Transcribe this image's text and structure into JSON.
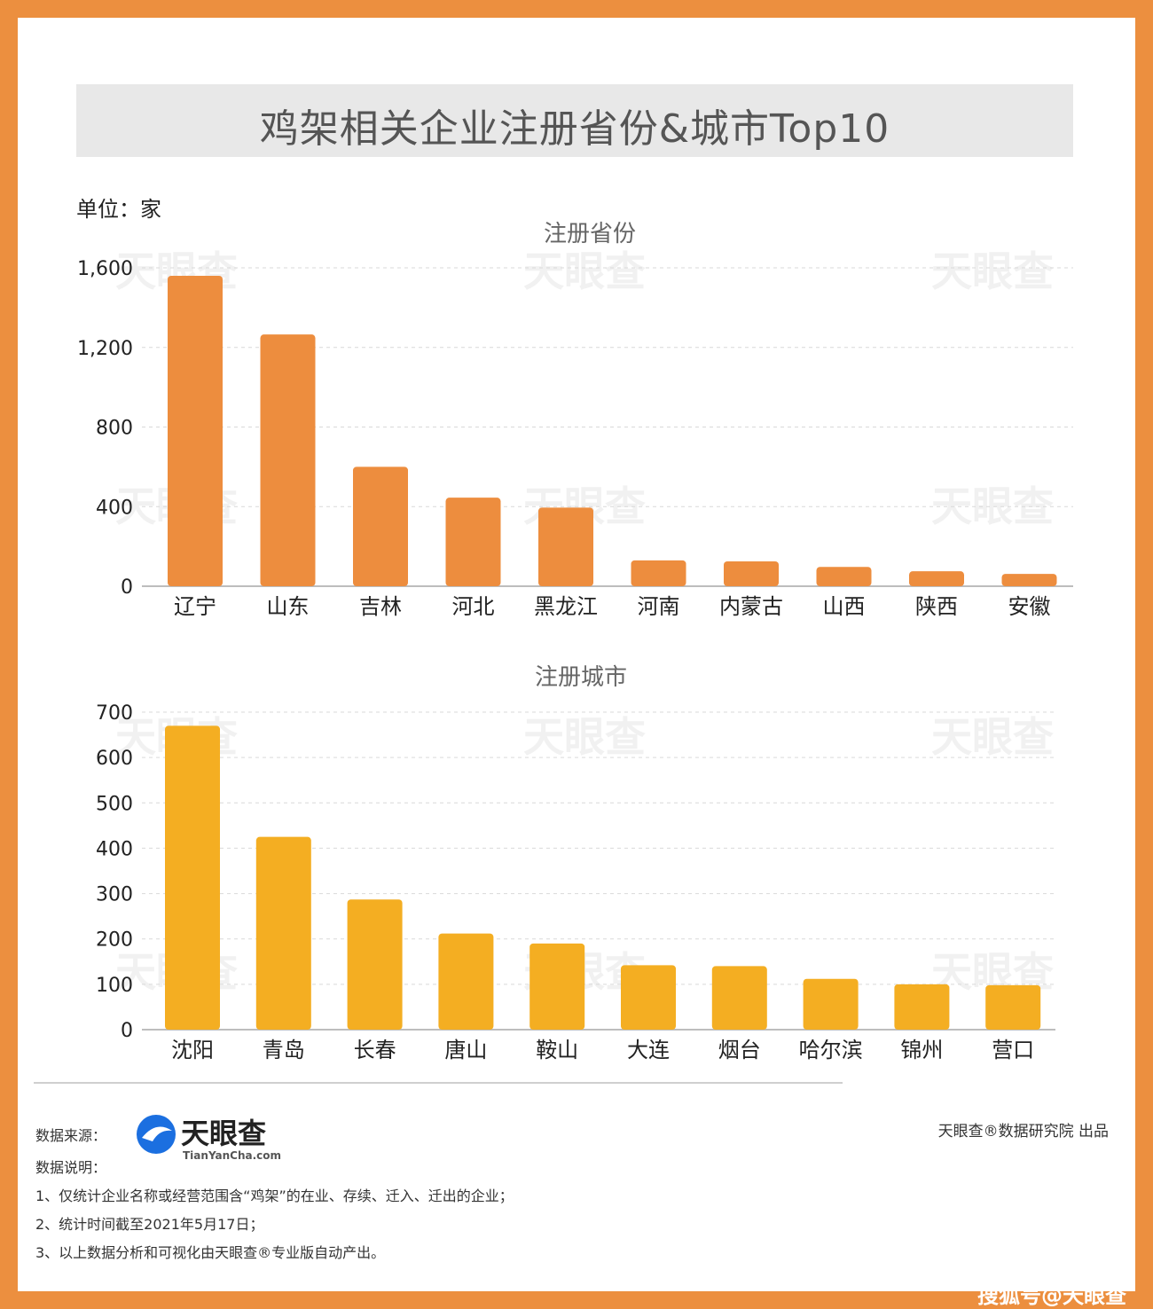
{
  "header": {
    "title": "鸡架相关企业注册省份&城市Top10",
    "unit": "单位：家"
  },
  "colors": {
    "frame": "#ec8f3f",
    "province_bar": "#ed8d3e",
    "city_bar": "#f4ae22"
  },
  "chart_data": [
    {
      "type": "bar",
      "title": "注册省份",
      "categories": [
        "辽宁",
        "山东",
        "吉林",
        "河北",
        "黑龙江",
        "河南",
        "内蒙古",
        "山西",
        "陕西",
        "安徽"
      ],
      "values": [
        1560,
        1265,
        600,
        445,
        395,
        130,
        125,
        97,
        75,
        62
      ],
      "ylim": [
        0,
        1600
      ],
      "yticks": [
        0,
        400,
        800,
        1200,
        1600
      ],
      "ytick_labels": [
        "0",
        "400",
        "800",
        "1,200",
        "1,600"
      ],
      "grid": true
    },
    {
      "type": "bar",
      "title": "注册城市",
      "categories": [
        "沈阳",
        "青岛",
        "长春",
        "唐山",
        "鞍山",
        "大连",
        "烟台",
        "哈尔滨",
        "锦州",
        "营口"
      ],
      "values": [
        670,
        425,
        287,
        212,
        190,
        142,
        140,
        112,
        100,
        98
      ],
      "ylim": [
        0,
        700
      ],
      "yticks": [
        0,
        100,
        200,
        300,
        400,
        500,
        600,
        700
      ],
      "ytick_labels": [
        "0",
        "100",
        "200",
        "300",
        "400",
        "500",
        "600",
        "700"
      ],
      "grid": true
    }
  ],
  "watermark": {
    "brand": "天眼查",
    "domain": "TianYanCha.com"
  },
  "footer": {
    "source_label": "数据来源：",
    "logo_text": "天眼查",
    "logo_sub": "TianYanCha.com",
    "notes_label": "数据说明：",
    "notes": [
      "1、仅统计企业名称或经营范围含“鸡架”的在业、存续、迁入、迁出的企业；",
      "2、统计时间截至2021年5月17日；",
      "3、以上数据分析和可视化由天眼查®专业版自动产出。"
    ],
    "credit": "天眼查®数据研究院 出品",
    "corner": "搜狐号@天眼查"
  }
}
